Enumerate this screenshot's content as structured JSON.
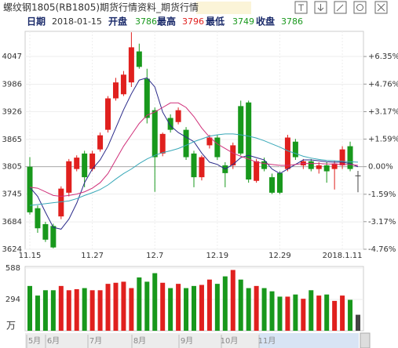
{
  "header": {
    "title": "螺纹钢1805(RB1805)期货行情资料_期货行情"
  },
  "info": {
    "date_label": "日期",
    "date": "2018-01-15",
    "open_label": "开盘",
    "open": 3786,
    "high_label": "最高",
    "high": 3796,
    "low_label": "最低",
    "low": 3749,
    "close_label": "收盘",
    "close": 3786
  },
  "timeline": {
    "labels": [
      "5月",
      "6月",
      "7月",
      "8月",
      "9月",
      "10月",
      "11月"
    ]
  },
  "chart_data": [
    {
      "type": "candlestick",
      "categories": [
        "11.15",
        null,
        null,
        null,
        null,
        null,
        null,
        null,
        "11.27",
        null,
        null,
        null,
        null,
        null,
        null,
        null,
        "12.7",
        null,
        null,
        null,
        null,
        null,
        null,
        null,
        "12.19",
        null,
        null,
        null,
        null,
        null,
        null,
        null,
        "12.29",
        null,
        null,
        null,
        null,
        null,
        null,
        null,
        "2018.1.11",
        null,
        null
      ],
      "open": [
        3805,
        3714,
        3679,
        3675,
        3696,
        3748,
        3800,
        3834,
        3800,
        3843,
        3886,
        3955,
        3964,
        3990,
        4058,
        3998,
        3929,
        3834,
        3912,
        3903,
        3886,
        3834,
        3782,
        3852,
        3869,
        3808,
        3808,
        3938,
        3946,
        3774,
        3817,
        3782,
        3791,
        3800,
        3860,
        3808,
        3817,
        3800,
        3808,
        3800,
        3808,
        3850,
        3786
      ],
      "high": [
        3826,
        3720,
        3684,
        3680,
        3762,
        3822,
        3830,
        3840,
        3840,
        3880,
        3960,
        4000,
        4015,
        4100,
        4075,
        4020,
        3935,
        3880,
        3920,
        3935,
        3892,
        3840,
        3830,
        3875,
        3875,
        3815,
        3858,
        3950,
        3950,
        3822,
        3825,
        3790,
        3795,
        3875,
        3866,
        3822,
        3822,
        3815,
        3815,
        3818,
        3850,
        3860,
        3796
      ],
      "low": [
        3700,
        3660,
        3640,
        3626,
        3690,
        3740,
        3795,
        3760,
        3795,
        3838,
        3880,
        3950,
        3960,
        3980,
        4020,
        3900,
        3750,
        3828,
        3880,
        3898,
        3820,
        3760,
        3775,
        3845,
        3820,
        3760,
        3800,
        3830,
        3770,
        3770,
        3795,
        3745,
        3745,
        3795,
        3820,
        3800,
        3795,
        3790,
        3770,
        3755,
        3800,
        3795,
        3749
      ],
      "close": [
        3705,
        3670,
        3645,
        3628,
        3757,
        3817,
        3825,
        3782,
        3834,
        3874,
        3955,
        3990,
        4007,
        4067,
        4024,
        3912,
        3826,
        3877,
        3886,
        3929,
        3826,
        3782,
        3826,
        3869,
        3826,
        3791,
        3852,
        3834,
        3777,
        3817,
        3800,
        3748,
        3748,
        3869,
        3826,
        3817,
        3800,
        3808,
        3795,
        3812,
        3843,
        3800,
        3786
      ],
      "up_color": "#e0201e",
      "down_color": "#18981c",
      "flat_color": "#444444",
      "lines": [
        {
          "color": "#2a2a8a",
          "values": [
            3760,
            3740,
            3705,
            3672,
            3668,
            3690,
            3725,
            3770,
            3800,
            3820,
            3850,
            3890,
            3930,
            3965,
            3995,
            4000,
            3980,
            3925,
            3895,
            3880,
            3870,
            3860,
            3835,
            3815,
            3810,
            3800,
            3810,
            3825,
            3830,
            3825,
            3820,
            3800,
            3790,
            3800,
            3810,
            3820,
            3820,
            3818,
            3816,
            3815,
            3815,
            3812,
            3805
          ]
        },
        {
          "color": "#d0307a",
          "values": [
            3760,
            3758,
            3750,
            3742,
            3740,
            3742,
            3745,
            3750,
            3758,
            3770,
            3790,
            3820,
            3850,
            3875,
            3900,
            3918,
            3925,
            3935,
            3945,
            3945,
            3935,
            3915,
            3890,
            3870,
            3855,
            3845,
            3835,
            3828,
            3822,
            3815,
            3812,
            3810,
            3808,
            3808,
            3810,
            3812,
            3812,
            3812,
            3811,
            3811,
            3810,
            3810,
            3808
          ]
        },
        {
          "color": "#38a8b8",
          "values": [
            3720,
            3722,
            3724,
            3726,
            3728,
            3730,
            3735,
            3742,
            3748,
            3755,
            3765,
            3778,
            3790,
            3800,
            3812,
            3822,
            3830,
            3836,
            3840,
            3845,
            3852,
            3860,
            3866,
            3872,
            3875,
            3877,
            3877,
            3875,
            3872,
            3868,
            3862,
            3855,
            3848,
            3840,
            3834,
            3828,
            3824,
            3821,
            3819,
            3818,
            3817,
            3816,
            3815
          ]
        }
      ],
      "ylim": [
        3624,
        4102
      ],
      "yticks": [
        4047,
        3986,
        3926,
        3865,
        3805,
        3745,
        3684,
        3624
      ],
      "y2lim": [
        -4.76,
        7.8
      ],
      "y2ticks": [
        {
          "value": 6.35,
          "label": "+6.35%"
        },
        {
          "value": 4.76,
          "label": "+4.76%"
        },
        {
          "value": 3.17,
          "label": "+3.17%"
        },
        {
          "value": 1.59,
          "label": "+1.59%"
        },
        {
          "value": 0,
          "label": "0.00%"
        },
        {
          "value": -1.59,
          "label": "-1.59%"
        },
        {
          "value": -3.17,
          "label": "-3.17%"
        },
        {
          "value": -4.76,
          "label": "-4.76%"
        }
      ],
      "grid": true
    },
    {
      "type": "bar",
      "ylabel": "万",
      "values": [
        420,
        330,
        380,
        380,
        420,
        380,
        390,
        400,
        380,
        380,
        440,
        450,
        460,
        400,
        500,
        460,
        540,
        450,
        400,
        440,
        400,
        420,
        430,
        480,
        440,
        510,
        570,
        480,
        400,
        420,
        400,
        370,
        320,
        320,
        340,
        300,
        380,
        330,
        340,
        280,
        330,
        290,
        150
      ],
      "ylim": [
        0,
        588
      ],
      "yticks": [
        588,
        294
      ]
    }
  ]
}
